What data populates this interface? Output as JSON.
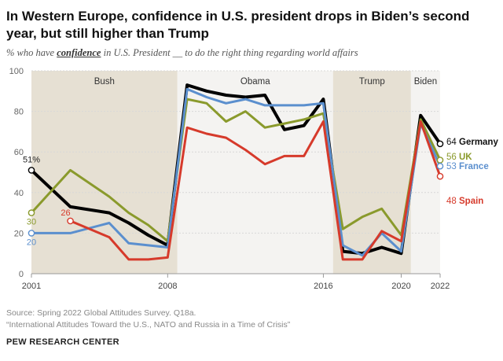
{
  "title": "In Western Europe, confidence in U.S. president drops in Biden’s second year, but still higher than Trump",
  "subtitle": {
    "pre": "% who have ",
    "emph": "confidence",
    "post": " in U.S. President __ to do the right thing regarding world affairs"
  },
  "source": "Source: Spring 2022 Global Attitudes Survey. Q18a.",
  "publication": "“International Attitudes Toward the U.S., NATO and Russia in a Time of Crisis”",
  "organization": "PEW RESEARCH CENTER",
  "chart_data": {
    "type": "line",
    "ylim": [
      0,
      100
    ],
    "yticks": [
      0,
      20,
      40,
      60,
      80,
      100
    ],
    "xlim": [
      2001,
      2022
    ],
    "xticks": [
      2001,
      2008,
      2016,
      2020,
      2022
    ],
    "grid": true,
    "eras": [
      {
        "label": "Bush",
        "from": 2001,
        "to": 2008.5,
        "shaded": true
      },
      {
        "label": "Obama",
        "from": 2008.5,
        "to": 2016.5,
        "shaded": false
      },
      {
        "label": "Trump",
        "from": 2016.5,
        "to": 2020.5,
        "shaded": true
      },
      {
        "label": "Biden",
        "from": 2020.5,
        "to": 2022,
        "shaded": false
      }
    ],
    "series": [
      {
        "name": "Germany",
        "color": "#000000",
        "width": 4,
        "points": [
          [
            2001,
            51
          ],
          [
            2003,
            33
          ],
          [
            2005,
            30
          ],
          [
            2006,
            25
          ],
          [
            2007,
            19
          ],
          [
            2008,
            14
          ],
          [
            2009,
            93
          ],
          [
            2010,
            90
          ],
          [
            2011,
            88
          ],
          [
            2012,
            87
          ],
          [
            2013,
            88
          ],
          [
            2014,
            71
          ],
          [
            2015,
            73
          ],
          [
            2016,
            86
          ],
          [
            2017,
            11
          ],
          [
            2018,
            10
          ],
          [
            2019,
            13
          ],
          [
            2020,
            10
          ],
          [
            2021,
            78
          ],
          [
            2022,
            64
          ]
        ],
        "start_label": "51%",
        "end_label": "64",
        "end_name": "Germany"
      },
      {
        "name": "UK",
        "color": "#8a9a2c",
        "width": 3,
        "points": [
          [
            2001,
            30
          ],
          [
            2003,
            51
          ],
          [
            2005,
            38
          ],
          [
            2006,
            30
          ],
          [
            2007,
            24
          ],
          [
            2008,
            16
          ],
          [
            2009,
            86
          ],
          [
            2010,
            84
          ],
          [
            2011,
            75
          ],
          [
            2012,
            80
          ],
          [
            2013,
            72
          ],
          [
            2014,
            74
          ],
          [
            2015,
            76
          ],
          [
            2016,
            79
          ],
          [
            2017,
            22
          ],
          [
            2018,
            28
          ],
          [
            2019,
            32
          ],
          [
            2020,
            19
          ],
          [
            2021,
            76
          ],
          [
            2022,
            56
          ]
        ],
        "start_label": "30",
        "end_label": "56",
        "end_name": "UK"
      },
      {
        "name": "France",
        "color": "#5b8fce",
        "width": 3,
        "points": [
          [
            2001,
            20
          ],
          [
            2003,
            20
          ],
          [
            2005,
            25
          ],
          [
            2006,
            15
          ],
          [
            2007,
            14
          ],
          [
            2008,
            13
          ],
          [
            2009,
            91
          ],
          [
            2010,
            87
          ],
          [
            2011,
            84
          ],
          [
            2012,
            86
          ],
          [
            2013,
            83
          ],
          [
            2014,
            83
          ],
          [
            2015,
            83
          ],
          [
            2016,
            84
          ],
          [
            2017,
            14
          ],
          [
            2018,
            9
          ],
          [
            2019,
            20
          ],
          [
            2020,
            11
          ],
          [
            2021,
            74
          ],
          [
            2022,
            53
          ]
        ],
        "start_label": "20",
        "end_label": "53",
        "end_name": "France"
      },
      {
        "name": "Spain",
        "color": "#d63a2b",
        "width": 3,
        "points": [
          [
            2003,
            26
          ],
          [
            2005,
            18
          ],
          [
            2006,
            7
          ],
          [
            2007,
            7
          ],
          [
            2008,
            8
          ],
          [
            2009,
            72
          ],
          [
            2010,
            69
          ],
          [
            2011,
            67
          ],
          [
            2012,
            61
          ],
          [
            2013,
            54
          ],
          [
            2014,
            58
          ],
          [
            2015,
            58
          ],
          [
            2016,
            75
          ],
          [
            2017,
            7
          ],
          [
            2018,
            7
          ],
          [
            2019,
            21
          ],
          [
            2020,
            16
          ],
          [
            2021,
            75
          ],
          [
            2022,
            48
          ]
        ],
        "start_label": "26",
        "end_label": "48",
        "end_name": "Spain"
      }
    ]
  }
}
